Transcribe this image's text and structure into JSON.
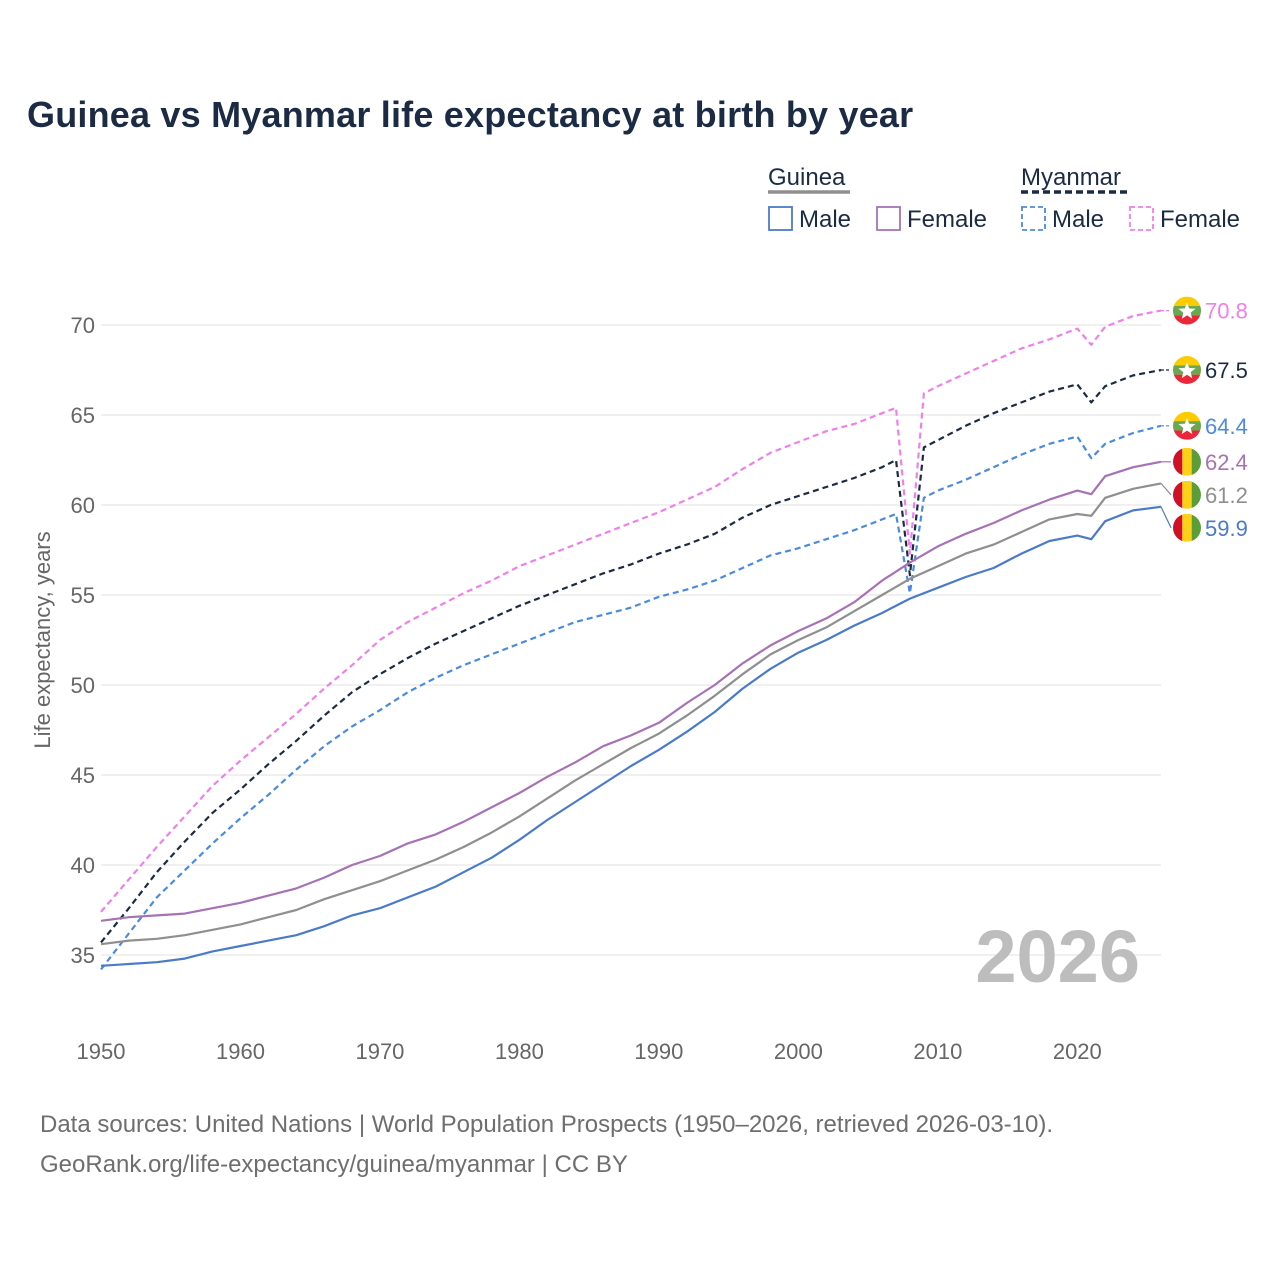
{
  "title": "Guinea vs Myanmar life expectancy at birth by year",
  "footer": {
    "line1": "Data sources: United Nations | World Population Prospects (1950–2026, retrieved 2026-03-10).",
    "line2": "GeoRank.org/life-expectancy/guinea/myanmar | CC BY"
  },
  "legend": {
    "groups": [
      {
        "label": "Guinea",
        "items": [
          {
            "label": "Male",
            "color": "#4a7bc8",
            "dashed": false
          },
          {
            "label": "Female",
            "color": "#a772b5",
            "dashed": false
          }
        ]
      },
      {
        "label": "Myanmar",
        "items": [
          {
            "label": "Male",
            "color": "#4a8be0",
            "dashed": true
          },
          {
            "label": "Female",
            "color": "#f07fe8",
            "dashed": true
          }
        ]
      }
    ]
  },
  "year_watermark": "2026",
  "chart_data": {
    "type": "line",
    "title": "Guinea vs Myanmar life expectancy at birth by year",
    "xlabel": "",
    "ylabel": "Life expectancy, years",
    "xlim": [
      1950,
      2026
    ],
    "ylim": [
      33,
      72
    ],
    "x_ticks": [
      1950,
      1960,
      1970,
      1980,
      1990,
      2000,
      2010,
      2020
    ],
    "y_ticks": [
      35,
      40,
      45,
      50,
      55,
      60,
      65,
      70
    ],
    "grid": true,
    "series": [
      {
        "name": "Myanmar Female",
        "color": "#f07fe8",
        "dashed": true,
        "end_label": "70.8",
        "flag": "myanmar",
        "points": [
          [
            1950,
            37.4
          ],
          [
            1952,
            39.2
          ],
          [
            1954,
            41.0
          ],
          [
            1956,
            42.7
          ],
          [
            1958,
            44.4
          ],
          [
            1960,
            45.8
          ],
          [
            1962,
            47.1
          ],
          [
            1964,
            48.4
          ],
          [
            1966,
            49.8
          ],
          [
            1968,
            51.1
          ],
          [
            1970,
            52.5
          ],
          [
            1972,
            53.5
          ],
          [
            1974,
            54.3
          ],
          [
            1976,
            55.1
          ],
          [
            1978,
            55.8
          ],
          [
            1980,
            56.6
          ],
          [
            1982,
            57.2
          ],
          [
            1984,
            57.8
          ],
          [
            1986,
            58.4
          ],
          [
            1988,
            59.0
          ],
          [
            1990,
            59.6
          ],
          [
            1992,
            60.3
          ],
          [
            1994,
            61.0
          ],
          [
            1996,
            62.0
          ],
          [
            1998,
            62.9
          ],
          [
            2000,
            63.5
          ],
          [
            2002,
            64.1
          ],
          [
            2004,
            64.5
          ],
          [
            2006,
            65.1
          ],
          [
            2007,
            65.4
          ],
          [
            2008,
            57.3
          ],
          [
            2009,
            66.2
          ],
          [
            2010,
            66.6
          ],
          [
            2012,
            67.3
          ],
          [
            2014,
            68.0
          ],
          [
            2016,
            68.7
          ],
          [
            2018,
            69.2
          ],
          [
            2020,
            69.8
          ],
          [
            2021,
            68.9
          ],
          [
            2022,
            69.9
          ],
          [
            2024,
            70.5
          ],
          [
            2026,
            70.8
          ]
        ]
      },
      {
        "name": "Myanmar Total",
        "color": "#1c2b44",
        "dashed": true,
        "end_label": "67.5",
        "flag": "myanmar",
        "points": [
          [
            1950,
            35.7
          ],
          [
            1952,
            37.6
          ],
          [
            1954,
            39.6
          ],
          [
            1956,
            41.3
          ],
          [
            1958,
            42.9
          ],
          [
            1960,
            44.2
          ],
          [
            1962,
            45.6
          ],
          [
            1964,
            46.9
          ],
          [
            1966,
            48.3
          ],
          [
            1968,
            49.6
          ],
          [
            1970,
            50.6
          ],
          [
            1972,
            51.5
          ],
          [
            1974,
            52.3
          ],
          [
            1976,
            53.0
          ],
          [
            1978,
            53.7
          ],
          [
            1980,
            54.4
          ],
          [
            1982,
            55.0
          ],
          [
            1984,
            55.6
          ],
          [
            1986,
            56.2
          ],
          [
            1988,
            56.7
          ],
          [
            1990,
            57.3
          ],
          [
            1992,
            57.8
          ],
          [
            1994,
            58.4
          ],
          [
            1996,
            59.3
          ],
          [
            1998,
            60.0
          ],
          [
            2000,
            60.5
          ],
          [
            2002,
            61.0
          ],
          [
            2004,
            61.5
          ],
          [
            2006,
            62.1
          ],
          [
            2007,
            62.5
          ],
          [
            2008,
            56.1
          ],
          [
            2009,
            63.2
          ],
          [
            2010,
            63.6
          ],
          [
            2012,
            64.4
          ],
          [
            2014,
            65.1
          ],
          [
            2016,
            65.7
          ],
          [
            2018,
            66.3
          ],
          [
            2020,
            66.7
          ],
          [
            2021,
            65.7
          ],
          [
            2022,
            66.6
          ],
          [
            2024,
            67.2
          ],
          [
            2026,
            67.5
          ]
        ]
      },
      {
        "name": "Myanmar Male",
        "color": "#4a8be0",
        "dashed": true,
        "end_label": "64.4",
        "flag": "myanmar",
        "points": [
          [
            1950,
            34.2
          ],
          [
            1952,
            36.2
          ],
          [
            1954,
            38.2
          ],
          [
            1956,
            39.7
          ],
          [
            1958,
            41.2
          ],
          [
            1960,
            42.6
          ],
          [
            1962,
            43.9
          ],
          [
            1964,
            45.3
          ],
          [
            1966,
            46.6
          ],
          [
            1968,
            47.7
          ],
          [
            1970,
            48.6
          ],
          [
            1972,
            49.6
          ],
          [
            1974,
            50.4
          ],
          [
            1976,
            51.1
          ],
          [
            1978,
            51.7
          ],
          [
            1980,
            52.3
          ],
          [
            1982,
            52.9
          ],
          [
            1984,
            53.5
          ],
          [
            1986,
            53.9
          ],
          [
            1988,
            54.3
          ],
          [
            1990,
            54.9
          ],
          [
            1992,
            55.3
          ],
          [
            1994,
            55.8
          ],
          [
            1996,
            56.5
          ],
          [
            1998,
            57.2
          ],
          [
            2000,
            57.6
          ],
          [
            2002,
            58.1
          ],
          [
            2004,
            58.6
          ],
          [
            2006,
            59.2
          ],
          [
            2007,
            59.5
          ],
          [
            2008,
            55.1
          ],
          [
            2009,
            60.4
          ],
          [
            2010,
            60.8
          ],
          [
            2012,
            61.4
          ],
          [
            2014,
            62.1
          ],
          [
            2016,
            62.8
          ],
          [
            2018,
            63.4
          ],
          [
            2020,
            63.8
          ],
          [
            2021,
            62.6
          ],
          [
            2022,
            63.4
          ],
          [
            2024,
            64.0
          ],
          [
            2026,
            64.4
          ]
        ]
      },
      {
        "name": "Guinea Female",
        "color": "#a772b5",
        "dashed": false,
        "end_label": "62.4",
        "flag": "guinea",
        "points": [
          [
            1950,
            36.9
          ],
          [
            1952,
            37.1
          ],
          [
            1954,
            37.2
          ],
          [
            1956,
            37.3
          ],
          [
            1958,
            37.6
          ],
          [
            1960,
            37.9
          ],
          [
            1962,
            38.3
          ],
          [
            1964,
            38.7
          ],
          [
            1966,
            39.3
          ],
          [
            1968,
            40.0
          ],
          [
            1970,
            40.5
          ],
          [
            1972,
            41.2
          ],
          [
            1974,
            41.7
          ],
          [
            1976,
            42.4
          ],
          [
            1978,
            43.2
          ],
          [
            1980,
            44.0
          ],
          [
            1982,
            44.9
          ],
          [
            1984,
            45.7
          ],
          [
            1986,
            46.6
          ],
          [
            1988,
            47.2
          ],
          [
            1990,
            47.9
          ],
          [
            1992,
            49.0
          ],
          [
            1994,
            50.0
          ],
          [
            1996,
            51.2
          ],
          [
            1998,
            52.2
          ],
          [
            2000,
            53.0
          ],
          [
            2002,
            53.7
          ],
          [
            2004,
            54.6
          ],
          [
            2006,
            55.8
          ],
          [
            2008,
            56.8
          ],
          [
            2010,
            57.7
          ],
          [
            2012,
            58.4
          ],
          [
            2014,
            59.0
          ],
          [
            2016,
            59.7
          ],
          [
            2018,
            60.3
          ],
          [
            2020,
            60.8
          ],
          [
            2021,
            60.6
          ],
          [
            2022,
            61.6
          ],
          [
            2024,
            62.1
          ],
          [
            2026,
            62.4
          ]
        ]
      },
      {
        "name": "Guinea Total",
        "color": "#8f8f8f",
        "dashed": false,
        "end_label": "61.2",
        "flag": "guinea",
        "points": [
          [
            1950,
            35.6
          ],
          [
            1952,
            35.8
          ],
          [
            1954,
            35.9
          ],
          [
            1956,
            36.1
          ],
          [
            1958,
            36.4
          ],
          [
            1960,
            36.7
          ],
          [
            1962,
            37.1
          ],
          [
            1964,
            37.5
          ],
          [
            1966,
            38.1
          ],
          [
            1968,
            38.6
          ],
          [
            1970,
            39.1
          ],
          [
            1972,
            39.7
          ],
          [
            1974,
            40.3
          ],
          [
            1976,
            41.0
          ],
          [
            1978,
            41.8
          ],
          [
            1980,
            42.7
          ],
          [
            1982,
            43.7
          ],
          [
            1984,
            44.7
          ],
          [
            1986,
            45.6
          ],
          [
            1988,
            46.5
          ],
          [
            1990,
            47.3
          ],
          [
            1992,
            48.3
          ],
          [
            1994,
            49.4
          ],
          [
            1996,
            50.6
          ],
          [
            1998,
            51.7
          ],
          [
            2000,
            52.5
          ],
          [
            2002,
            53.2
          ],
          [
            2004,
            54.1
          ],
          [
            2006,
            55.0
          ],
          [
            2008,
            55.9
          ],
          [
            2010,
            56.6
          ],
          [
            2012,
            57.3
          ],
          [
            2014,
            57.8
          ],
          [
            2016,
            58.5
          ],
          [
            2018,
            59.2
          ],
          [
            2020,
            59.5
          ],
          [
            2021,
            59.4
          ],
          [
            2022,
            60.4
          ],
          [
            2024,
            60.9
          ],
          [
            2026,
            61.2
          ]
        ]
      },
      {
        "name": "Guinea Male",
        "color": "#4a7bc8",
        "dashed": false,
        "end_label": "59.9",
        "flag": "guinea",
        "points": [
          [
            1950,
            34.4
          ],
          [
            1952,
            34.5
          ],
          [
            1954,
            34.6
          ],
          [
            1956,
            34.8
          ],
          [
            1958,
            35.2
          ],
          [
            1960,
            35.5
          ],
          [
            1962,
            35.8
          ],
          [
            1964,
            36.1
          ],
          [
            1966,
            36.6
          ],
          [
            1968,
            37.2
          ],
          [
            1970,
            37.6
          ],
          [
            1972,
            38.2
          ],
          [
            1974,
            38.8
          ],
          [
            1976,
            39.6
          ],
          [
            1978,
            40.4
          ],
          [
            1980,
            41.4
          ],
          [
            1982,
            42.5
          ],
          [
            1984,
            43.5
          ],
          [
            1986,
            44.5
          ],
          [
            1988,
            45.5
          ],
          [
            1990,
            46.4
          ],
          [
            1992,
            47.4
          ],
          [
            1994,
            48.5
          ],
          [
            1996,
            49.8
          ],
          [
            1998,
            50.9
          ],
          [
            2000,
            51.8
          ],
          [
            2002,
            52.5
          ],
          [
            2004,
            53.3
          ],
          [
            2006,
            54.0
          ],
          [
            2008,
            54.8
          ],
          [
            2010,
            55.4
          ],
          [
            2012,
            56.0
          ],
          [
            2014,
            56.5
          ],
          [
            2016,
            57.3
          ],
          [
            2018,
            58.0
          ],
          [
            2020,
            58.3
          ],
          [
            2021,
            58.1
          ],
          [
            2022,
            59.1
          ],
          [
            2024,
            59.7
          ],
          [
            2026,
            59.9
          ]
        ]
      }
    ]
  }
}
